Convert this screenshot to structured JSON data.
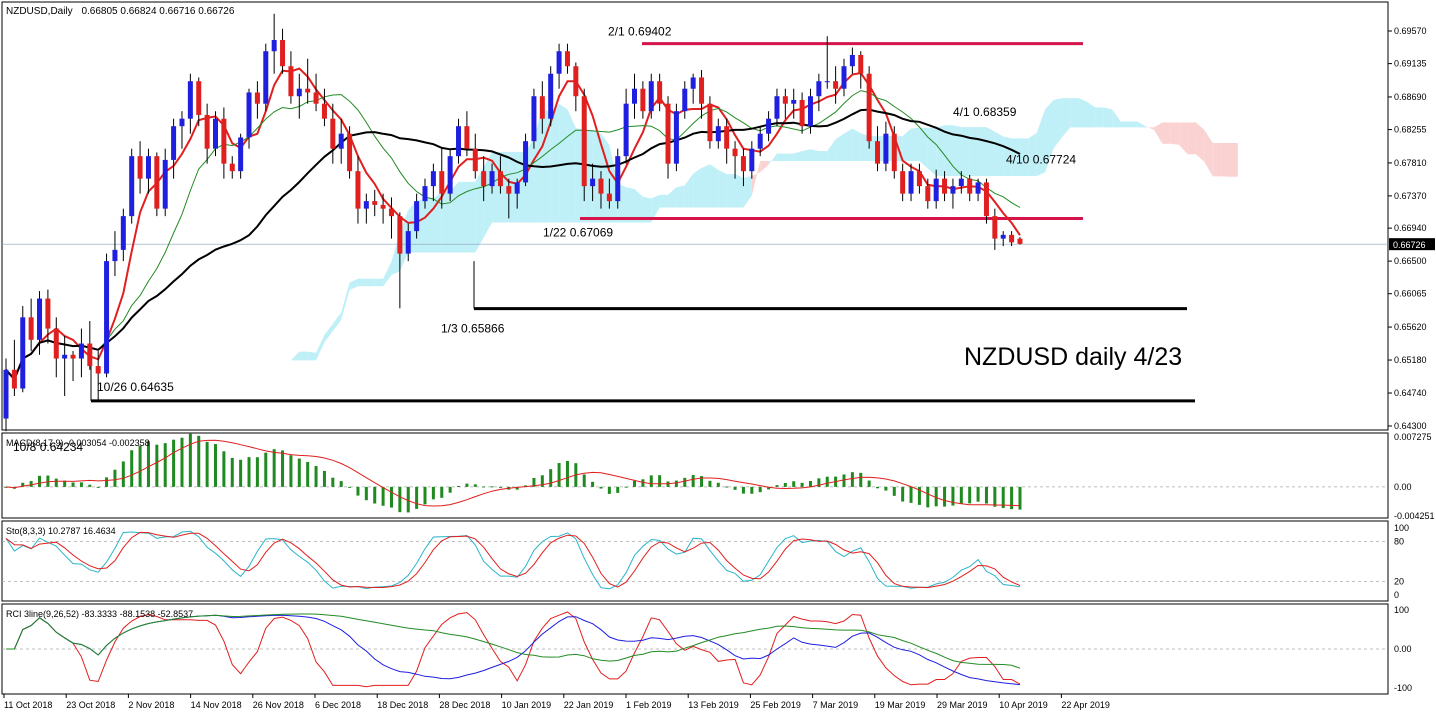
{
  "chart_data": {
    "type": "candlestick",
    "symbol_header": "NZDUSD,Daily",
    "ohlc_header": "0.66805 0.66824 0.66716 0.66726",
    "watermark": "NZDUSD daily 4/23",
    "price_axis_ticks": [
      "0.69570",
      "0.69135",
      "0.68690",
      "0.68255",
      "0.67810",
      "0.67370",
      "0.66940",
      "0.66500",
      "0.66065",
      "0.65620",
      "0.65180",
      "0.64740",
      "0.64300"
    ],
    "current_price": "0.66726",
    "date_ticks": [
      "11 Oct 2018",
      "23 Oct 2018",
      "2 Nov 2018",
      "14 Nov 2018",
      "26 Nov 2018",
      "6 Dec 2018",
      "18 Dec 2018",
      "28 Dec 2018",
      "10 Jan 2019",
      "22 Jan 2019",
      "1 Feb 2019",
      "13 Feb 2019",
      "25 Feb 2019",
      "7 Mar 2019",
      "19 Mar 2019",
      "29 Mar 2019",
      "10 Apr 2019",
      "22 Apr 2019"
    ],
    "annotations": [
      {
        "text": "2/1 0.69402",
        "price": 0.69402
      },
      {
        "text": "1/22 0.67069",
        "price": 0.67069
      },
      {
        "text": "1/3 0.65866",
        "price": 0.65866
      },
      {
        "text": "10/26 0.64635",
        "price": 0.64635
      },
      {
        "text": "10/8 0.64234",
        "price": 0.64234
      },
      {
        "text": "4/1 0.68359",
        "price": 0.68359
      },
      {
        "text": "4/10 0.67724",
        "price": 0.67724
      }
    ],
    "candles": [
      [
        0.644,
        0.652,
        0.6423,
        0.6505
      ],
      [
        0.6505,
        0.6545,
        0.647,
        0.648
      ],
      [
        0.648,
        0.659,
        0.6475,
        0.6575
      ],
      [
        0.6575,
        0.66,
        0.653,
        0.6545
      ],
      [
        0.6545,
        0.661,
        0.6525,
        0.66
      ],
      [
        0.66,
        0.6612,
        0.654,
        0.656
      ],
      [
        0.656,
        0.6575,
        0.6495,
        0.652
      ],
      [
        0.652,
        0.655,
        0.647,
        0.6525
      ],
      [
        0.6525,
        0.653,
        0.649,
        0.652
      ],
      [
        0.652,
        0.656,
        0.6495,
        0.654
      ],
      [
        0.654,
        0.657,
        0.6505,
        0.651
      ],
      [
        0.651,
        0.653,
        0.6463,
        0.65
      ],
      [
        0.65,
        0.666,
        0.6495,
        0.665
      ],
      [
        0.665,
        0.669,
        0.663,
        0.6665
      ],
      [
        0.6665,
        0.672,
        0.665,
        0.671
      ],
      [
        0.671,
        0.68,
        0.67,
        0.679
      ],
      [
        0.679,
        0.681,
        0.674,
        0.676
      ],
      [
        0.676,
        0.68,
        0.674,
        0.679
      ],
      [
        0.679,
        0.6795,
        0.671,
        0.672
      ],
      [
        0.672,
        0.68,
        0.671,
        0.6785
      ],
      [
        0.6785,
        0.684,
        0.676,
        0.683
      ],
      [
        0.683,
        0.685,
        0.68,
        0.684
      ],
      [
        0.684,
        0.69,
        0.682,
        0.689
      ],
      [
        0.689,
        0.6895,
        0.683,
        0.6845
      ],
      [
        0.6845,
        0.686,
        0.678,
        0.68
      ],
      [
        0.68,
        0.685,
        0.679,
        0.684
      ],
      [
        0.684,
        0.6855,
        0.676,
        0.678
      ],
      [
        0.678,
        0.679,
        0.676,
        0.677
      ],
      [
        0.677,
        0.682,
        0.676,
        0.6815
      ],
      [
        0.6815,
        0.688,
        0.68,
        0.6875
      ],
      [
        0.6875,
        0.689,
        0.684,
        0.686
      ],
      [
        0.686,
        0.694,
        0.685,
        0.693
      ],
      [
        0.693,
        0.698,
        0.69,
        0.6945
      ],
      [
        0.6945,
        0.696,
        0.69,
        0.691
      ],
      [
        0.691,
        0.693,
        0.686,
        0.687
      ],
      [
        0.687,
        0.69,
        0.684,
        0.688
      ],
      [
        0.688,
        0.692,
        0.686,
        0.6875
      ],
      [
        0.6875,
        0.69,
        0.685,
        0.686
      ],
      [
        0.686,
        0.688,
        0.683,
        0.684
      ],
      [
        0.684,
        0.686,
        0.678,
        0.68
      ],
      [
        0.68,
        0.684,
        0.678,
        0.682
      ],
      [
        0.682,
        0.683,
        0.676,
        0.677
      ],
      [
        0.677,
        0.679,
        0.67,
        0.672
      ],
      [
        0.672,
        0.674,
        0.67,
        0.673
      ],
      [
        0.673,
        0.6745,
        0.671,
        0.6725
      ],
      [
        0.6725,
        0.674,
        0.67,
        0.672
      ],
      [
        0.672,
        0.6735,
        0.668,
        0.671
      ],
      [
        0.671,
        0.6715,
        0.6587,
        0.666
      ],
      [
        0.666,
        0.67,
        0.665,
        0.669
      ],
      [
        0.669,
        0.674,
        0.668,
        0.673
      ],
      [
        0.673,
        0.676,
        0.672,
        0.675
      ],
      [
        0.675,
        0.678,
        0.673,
        0.677
      ],
      [
        0.677,
        0.68,
        0.672,
        0.674
      ],
      [
        0.674,
        0.68,
        0.673,
        0.679
      ],
      [
        0.679,
        0.684,
        0.678,
        0.683
      ],
      [
        0.683,
        0.685,
        0.679,
        0.68
      ],
      [
        0.68,
        0.682,
        0.676,
        0.677
      ],
      [
        0.677,
        0.679,
        0.673,
        0.675
      ],
      [
        0.675,
        0.678,
        0.674,
        0.677
      ],
      [
        0.677,
        0.679,
        0.674,
        0.675
      ],
      [
        0.675,
        0.676,
        0.6707,
        0.674
      ],
      [
        0.674,
        0.676,
        0.672,
        0.6755
      ],
      [
        0.6755,
        0.682,
        0.675,
        0.681
      ],
      [
        0.681,
        0.688,
        0.68,
        0.687
      ],
      [
        0.687,
        0.689,
        0.682,
        0.684
      ],
      [
        0.684,
        0.691,
        0.683,
        0.69
      ],
      [
        0.69,
        0.694,
        0.688,
        0.693
      ],
      [
        0.693,
        0.694,
        0.69,
        0.691
      ],
      [
        0.691,
        0.6915,
        0.685,
        0.687
      ],
      [
        0.687,
        0.688,
        0.673,
        0.675
      ],
      [
        0.675,
        0.678,
        0.673,
        0.676
      ],
      [
        0.676,
        0.677,
        0.672,
        0.674
      ],
      [
        0.674,
        0.676,
        0.672,
        0.673
      ],
      [
        0.673,
        0.68,
        0.672,
        0.679
      ],
      [
        0.679,
        0.688,
        0.678,
        0.686
      ],
      [
        0.686,
        0.69,
        0.684,
        0.688
      ],
      [
        0.688,
        0.689,
        0.684,
        0.685
      ],
      [
        0.685,
        0.69,
        0.684,
        0.689
      ],
      [
        0.689,
        0.69,
        0.685,
        0.686
      ],
      [
        0.686,
        0.687,
        0.676,
        0.678
      ],
      [
        0.678,
        0.686,
        0.677,
        0.685
      ],
      [
        0.685,
        0.689,
        0.684,
        0.688
      ],
      [
        0.688,
        0.69,
        0.686,
        0.6895
      ],
      [
        0.6895,
        0.6905,
        0.684,
        0.686
      ],
      [
        0.686,
        0.687,
        0.68,
        0.681
      ],
      [
        0.681,
        0.684,
        0.68,
        0.683
      ],
      [
        0.683,
        0.684,
        0.678,
        0.68
      ],
      [
        0.68,
        0.681,
        0.676,
        0.679
      ],
      [
        0.679,
        0.68,
        0.675,
        0.677
      ],
      [
        0.677,
        0.681,
        0.676,
        0.68
      ],
      [
        0.68,
        0.683,
        0.679,
        0.682
      ],
      [
        0.682,
        0.685,
        0.681,
        0.684
      ],
      [
        0.684,
        0.688,
        0.683,
        0.687
      ],
      [
        0.687,
        0.688,
        0.684,
        0.686
      ],
      [
        0.686,
        0.688,
        0.684,
        0.6865
      ],
      [
        0.6865,
        0.6875,
        0.682,
        0.683
      ],
      [
        0.683,
        0.688,
        0.682,
        0.687
      ],
      [
        0.687,
        0.69,
        0.685,
        0.689
      ],
      [
        0.689,
        0.695,
        0.688,
        0.689
      ],
      [
        0.689,
        0.691,
        0.686,
        0.688
      ],
      [
        0.688,
        0.692,
        0.687,
        0.691
      ],
      [
        0.691,
        0.6935,
        0.69,
        0.6925
      ],
      [
        0.6925,
        0.693,
        0.688,
        0.69
      ],
      [
        0.69,
        0.691,
        0.68,
        0.681
      ],
      [
        0.681,
        0.683,
        0.677,
        0.678
      ],
      [
        0.678,
        0.6836,
        0.677,
        0.682
      ],
      [
        0.682,
        0.683,
        0.676,
        0.677
      ],
      [
        0.677,
        0.678,
        0.673,
        0.674
      ],
      [
        0.674,
        0.678,
        0.673,
        0.677
      ],
      [
        0.677,
        0.678,
        0.674,
        0.675
      ],
      [
        0.675,
        0.676,
        0.672,
        0.673
      ],
      [
        0.673,
        0.6772,
        0.672,
        0.676
      ],
      [
        0.676,
        0.677,
        0.673,
        0.674
      ],
      [
        0.674,
        0.676,
        0.672,
        0.675
      ],
      [
        0.675,
        0.677,
        0.674,
        0.676
      ],
      [
        0.676,
        0.6765,
        0.673,
        0.674
      ],
      [
        0.674,
        0.676,
        0.673,
        0.6755
      ],
      [
        0.6755,
        0.676,
        0.67,
        0.671
      ],
      [
        0.671,
        0.672,
        0.6665,
        0.668
      ],
      [
        0.668,
        0.669,
        0.667,
        0.6685
      ],
      [
        0.6685,
        0.669,
        0.667,
        0.6675
      ],
      [
        0.668,
        0.6682,
        0.6672,
        0.6673
      ]
    ],
    "macd": {
      "header": "MACD(8,17,9) -0.003054 -0.002358",
      "ticks": [
        "0.007275",
        "0.00",
        "-0.004251"
      ]
    },
    "stochastic": {
      "header": "Sto(8,3,3) 10.2787 16.4634",
      "ticks": [
        "100",
        "80",
        "20",
        "0"
      ]
    },
    "rci": {
      "header": "RCI 3line(9,26,52) -83.3333 -88.1538 -52.8537",
      "ticks": [
        "100",
        "0.00",
        "-100"
      ]
    },
    "colors": {
      "bull": "#1f1fe0",
      "bear": "#e01f1f",
      "red_line": "#e01f1f",
      "green_line": "#228b22",
      "black_line": "#000000",
      "cloud_bull": "#bfeff7",
      "cloud_bear": "#fbd2d2",
      "level_line": "#d6134a",
      "macd_hist": "#1f8a1f"
    }
  }
}
